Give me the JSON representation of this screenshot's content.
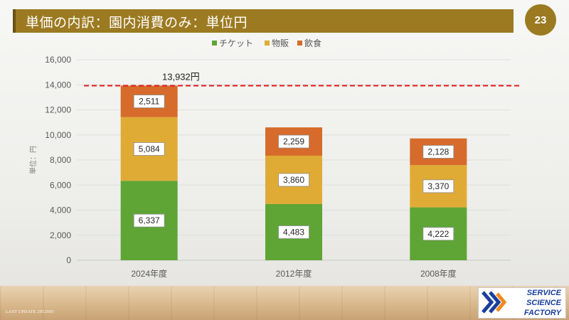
{
  "header": {
    "title": "単価の内訳：園内消費のみ：単位円",
    "page_number": "23"
  },
  "footer": {
    "last_update": "LAST UPDATE 2012S05",
    "logo_lines": [
      "SERVICE",
      "SCIENCE",
      "FACTORY"
    ]
  },
  "colors": {
    "title_bar": "#9c7a21",
    "ticket": "#5ea535",
    "merch": "#e0ab35",
    "food": "#d66b2b",
    "reference_line": "#e01b1b"
  },
  "chart_data": {
    "type": "bar",
    "stacked": true,
    "categories": [
      "2024年度",
      "2012年度",
      "2008年度"
    ],
    "series": [
      {
        "name": "チケット",
        "values": [
          6337,
          4483,
          4222
        ],
        "color": "#5ea535"
      },
      {
        "name": "物販",
        "values": [
          5084,
          3860,
          3370
        ],
        "color": "#e0ab35"
      },
      {
        "name": "飲食",
        "values": [
          2511,
          2259,
          2128
        ],
        "color": "#d66b2b"
      }
    ],
    "ylabel": "単位：円",
    "ylim": [
      0,
      16000
    ],
    "yticks": [
      "0",
      "2,000",
      "4,000",
      "6,000",
      "8,000",
      "10,000",
      "12,000",
      "14,000",
      "16,000"
    ],
    "grid": true,
    "legend_position": "top",
    "reference_line": {
      "value": 13932,
      "label": "13,932円"
    }
  }
}
